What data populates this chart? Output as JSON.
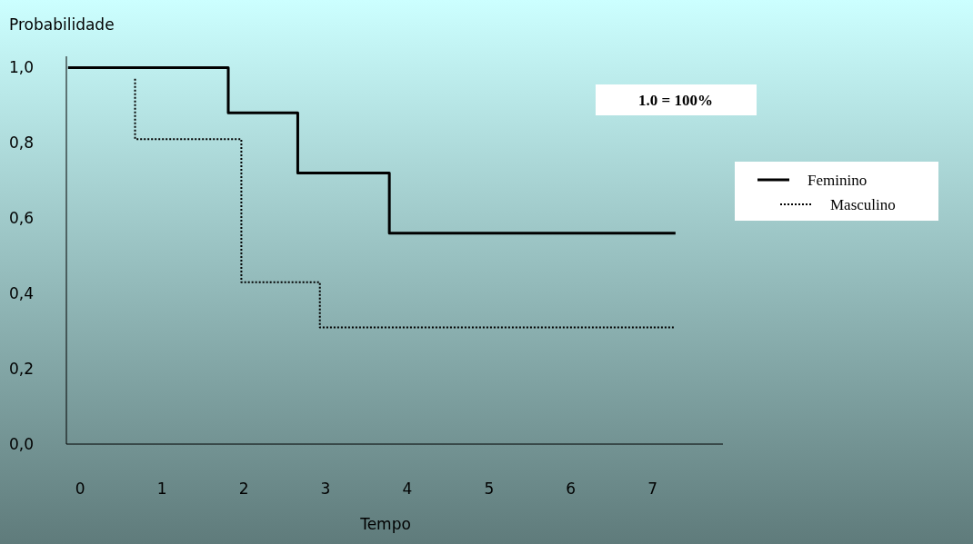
{
  "chart_data": {
    "type": "step",
    "ylabel": "Probabilidade",
    "xlabel": "Tempo",
    "xlim": [
      -0.17,
      7.86
    ],
    "xticks": [
      0,
      1,
      2,
      3,
      4,
      5,
      6,
      7
    ],
    "ylim": [
      0,
      1.03
    ],
    "yticks": [
      {
        "value": 0,
        "label": "0,0"
      },
      {
        "value": 0.2,
        "label": "0,2"
      },
      {
        "value": 0.4,
        "label": "0,4"
      },
      {
        "value": 0.6,
        "label": "0,6"
      },
      {
        "value": 0.8,
        "label": "0,8"
      },
      {
        "value": 1,
        "label": "1,0"
      }
    ],
    "series": [
      {
        "name": "Feminino",
        "color": "#000000",
        "line_style": "solid",
        "x": [
          -0.15,
          1.81,
          2.66,
          3.78,
          7.28
        ],
        "values": [
          1.0,
          0.88,
          0.72,
          0.56,
          0.56
        ]
      },
      {
        "name": "Masculino",
        "color": "#000000",
        "line_style": "dotted",
        "x": [
          0.67,
          0.67,
          1.97,
          2.93,
          7.28
        ],
        "values": [
          0.97,
          0.81,
          0.43,
          0.31,
          0.31
        ]
      }
    ],
    "annotations": [
      "1.0 = 100%"
    ],
    "legend": "right",
    "grid": false
  }
}
